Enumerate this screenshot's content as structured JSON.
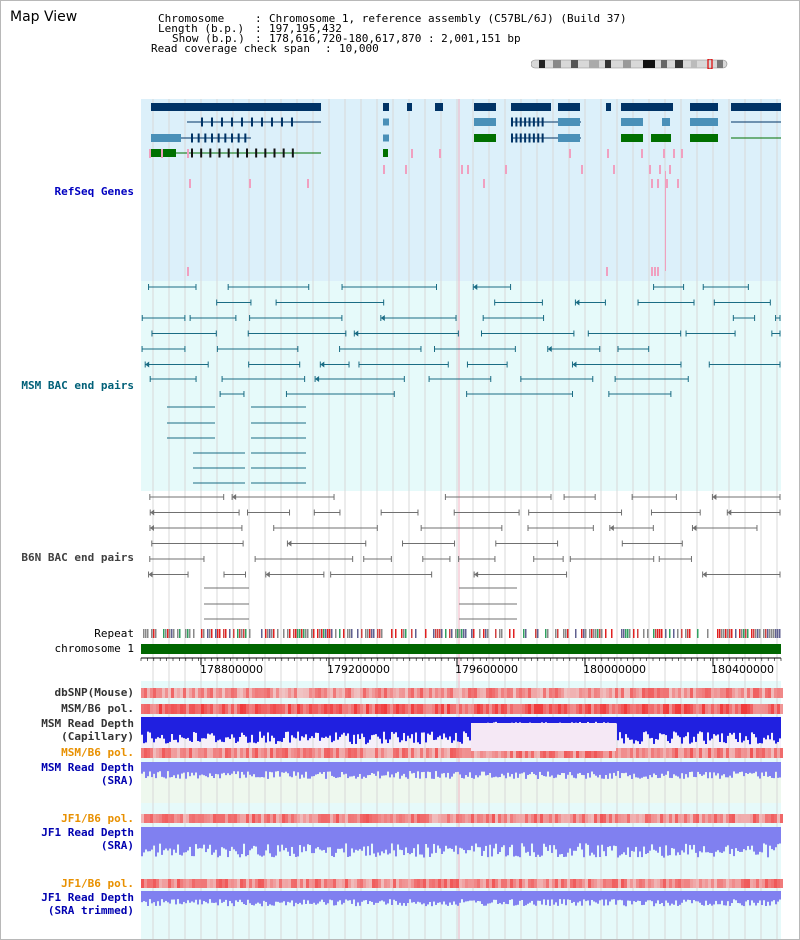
{
  "page": {
    "title": "Map View"
  },
  "header": {
    "chromosome_label": "Chromosome",
    "chromosome_value": "Chromosome 1, reference assembly (C57BL/6J) (Build 37)",
    "length_label": "Length (b.p.)",
    "length_value": "197,195,432",
    "show_label": "Show (b.p.)",
    "show_value": "178,616,720-180,617,870 : 2,001,151 bp",
    "read_label": "Read coverage check span",
    "read_value": "10,000",
    "sep": ":"
  },
  "tracks": {
    "refseq": {
      "label": "RefSeq Genes",
      "color": "#0000c0"
    },
    "msm_bac": {
      "label": "MSM BAC end pairs",
      "color": "#006078"
    },
    "b6n_bac": {
      "label": "B6N BAC end pairs",
      "color": "#404040"
    },
    "repeat": {
      "label": "Repeat"
    },
    "chromosome": {
      "label": "chromosome 1",
      "color": "#006600"
    },
    "dbsnp": {
      "label": "dbSNP(Mouse)"
    },
    "msm_b6_pol": {
      "label": "MSM/B6 pol."
    },
    "msm_depth_cap": {
      "label_line1": "MSM Read Depth",
      "label_line2": "(Capillary)"
    },
    "msm_b6_pol2": {
      "label": "MSM/B6 pol.",
      "color": "#e89000"
    },
    "msm_depth_sra": {
      "label_line1": "MSM Read Depth",
      "label_line2": "(SRA)",
      "color": "#0000b0"
    },
    "jf1_b6_pol": {
      "label": "JF1/B6 pol.",
      "color": "#e89000"
    },
    "jf1_depth_sra": {
      "label_line1": "JF1 Read Depth",
      "label_line2": "(SRA)",
      "color": "#0000b0"
    },
    "jf1_b6_pol2": {
      "label": "JF1/B6 pol.",
      "color": "#e89000"
    },
    "jf1_depth_trim": {
      "label_line1": "JF1 Read Depth",
      "label_line2": "(SRA trimmed)",
      "color": "#0000b0"
    }
  },
  "axis": {
    "ticks": [
      "178800000",
      "179200000",
      "179600000",
      "180000000",
      "180400000"
    ],
    "start": 178616720,
    "end": 180617870
  },
  "colors": {
    "refseq_bg": "#dcf0fa",
    "msm_bg": "#e6fafa",
    "gene_dark": "#003366",
    "gene_mid": "#4a90b8",
    "gene_green": "#007000",
    "pink": "#f0a0c0",
    "msm_line": "#1a6c84",
    "b6n_line": "#707070",
    "depth_blue": "#2020e0",
    "depth_light": "#8080f0",
    "pol_red": "#e83030"
  }
}
